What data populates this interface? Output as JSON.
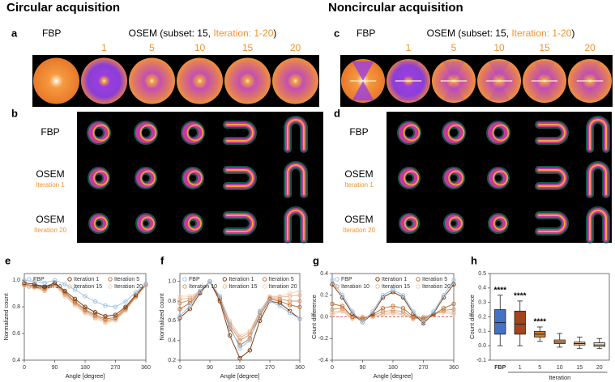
{
  "header": {
    "left_title": "Circular acquisition",
    "right_title": "Noncircular acquisition"
  },
  "panel_a": {
    "letter": "a",
    "fbp_label": "FBP",
    "osem_label": "OSEM (subset: 15, ",
    "iteration_label": "Iteration: 1-20",
    "close": ")",
    "columns": [
      "1",
      "5",
      "10",
      "15",
      "20"
    ]
  },
  "panel_b": {
    "letter": "b",
    "rows": [
      {
        "label": "FBP"
      },
      {
        "label": "OSEM",
        "sub": "Iteration 1"
      },
      {
        "label": "OSEM",
        "sub": "Iteration 20"
      }
    ]
  },
  "panel_c": {
    "letter": "c",
    "fbp_label": "FBP",
    "osem_label": "OSEM (subset: 15, ",
    "iteration_label": "Iteration: 1-20",
    "close": ")",
    "columns": [
      "1",
      "5",
      "10",
      "15",
      "20"
    ]
  },
  "panel_d": {
    "letter": "d",
    "rows": [
      {
        "label": "FBP"
      },
      {
        "label": "OSEM",
        "sub": "Iteration 1"
      },
      {
        "label": "OSEM",
        "sub": "Iteration 20"
      }
    ]
  },
  "chart_data": [
    {
      "type": "line",
      "panel_label": "e",
      "xlabel": "Angle [degree]",
      "ylabel": "Normalized count",
      "x": [
        0,
        30,
        60,
        90,
        120,
        150,
        180,
        210,
        240,
        270,
        300,
        330,
        360
      ],
      "xlim": [
        0,
        360
      ],
      "xticks": [
        0,
        90,
        180,
        270,
        360
      ],
      "ylim": [
        0.4,
        1.05
      ],
      "yticks": [
        0.4,
        0.6,
        0.8,
        {
          "value": 1,
          "label": "1.0"
        }
      ],
      "series": [
        {
          "name": "FBP",
          "color": "#9dc3e6",
          "values": [
            1.0,
            0.99,
            0.98,
            1.0,
            0.97,
            0.93,
            0.88,
            0.84,
            0.81,
            0.8,
            0.84,
            0.91,
            0.97
          ]
        },
        {
          "name": "Iteration 1",
          "color": "#7f3f16",
          "values": [
            0.98,
            0.97,
            0.95,
            0.98,
            0.92,
            0.86,
            0.8,
            0.76,
            0.73,
            0.74,
            0.8,
            0.89,
            0.97
          ]
        },
        {
          "name": "Iteration 5",
          "color": "#c0723a",
          "values": [
            0.97,
            0.96,
            0.94,
            0.98,
            0.91,
            0.84,
            0.78,
            0.74,
            0.71,
            0.72,
            0.79,
            0.88,
            0.97
          ]
        },
        {
          "name": "Iteration 10",
          "color": "#d99a6c",
          "values": [
            0.97,
            0.95,
            0.93,
            0.97,
            0.9,
            0.83,
            0.77,
            0.73,
            0.7,
            0.71,
            0.78,
            0.88,
            0.97
          ]
        },
        {
          "name": "Iteration 15",
          "color": "#ebbb98",
          "values": [
            0.96,
            0.95,
            0.92,
            0.97,
            0.89,
            0.82,
            0.76,
            0.72,
            0.69,
            0.7,
            0.78,
            0.87,
            0.96
          ]
        },
        {
          "name": "Iteration 20",
          "color": "#f4d3bd",
          "values": [
            0.96,
            0.94,
            0.92,
            0.96,
            0.88,
            0.81,
            0.75,
            0.71,
            0.68,
            0.7,
            0.77,
            0.87,
            0.96
          ]
        }
      ]
    },
    {
      "type": "line",
      "panel_label": "f",
      "xlabel": "Angle [degree]",
      "ylabel": "Normalized count",
      "x": [
        0,
        30,
        60,
        90,
        120,
        150,
        180,
        210,
        240,
        270,
        300,
        330,
        360
      ],
      "xlim": [
        0,
        360
      ],
      "xticks": [
        0,
        90,
        180,
        270,
        360
      ],
      "ylim": [
        0.2,
        1.08
      ],
      "yticks": [
        0.2,
        0.4,
        0.6,
        0.8,
        {
          "value": 1,
          "label": "1.0"
        }
      ],
      "series": [
        {
          "name": "FBP",
          "color": "#9dc3e6",
          "values": [
            0.65,
            0.75,
            0.9,
            1.0,
            0.85,
            0.55,
            0.32,
            0.4,
            0.7,
            0.8,
            0.75,
            0.68,
            0.62
          ]
        },
        {
          "name": "Iteration 1",
          "color": "#7f3f16",
          "values": [
            0.63,
            0.72,
            0.88,
            1.0,
            0.8,
            0.45,
            0.22,
            0.3,
            0.6,
            0.8,
            0.78,
            0.7,
            0.62
          ]
        },
        {
          "name": "Iteration 5",
          "color": "#c0723a",
          "values": [
            0.72,
            0.78,
            0.89,
            1.0,
            0.82,
            0.52,
            0.35,
            0.42,
            0.65,
            0.82,
            0.8,
            0.76,
            0.74
          ]
        },
        {
          "name": "Iteration 10",
          "color": "#d99a6c",
          "values": [
            0.78,
            0.81,
            0.89,
            1.0,
            0.83,
            0.56,
            0.4,
            0.46,
            0.68,
            0.83,
            0.82,
            0.8,
            0.8
          ]
        },
        {
          "name": "Iteration 15",
          "color": "#ebbb98",
          "values": [
            0.82,
            0.83,
            0.9,
            1.0,
            0.84,
            0.58,
            0.43,
            0.48,
            0.69,
            0.84,
            0.84,
            0.85,
            0.86
          ]
        },
        {
          "name": "Iteration 20",
          "color": "#f4d3bd",
          "values": [
            0.85,
            0.85,
            0.9,
            1.0,
            0.85,
            0.6,
            0.45,
            0.5,
            0.7,
            0.85,
            0.85,
            0.88,
            0.9
          ]
        }
      ]
    },
    {
      "type": "line",
      "panel_label": "g",
      "xlabel": "Angle [degree]",
      "ylabel": "Count difference",
      "hline": 0,
      "x": [
        0,
        30,
        60,
        90,
        120,
        150,
        180,
        210,
        240,
        270,
        300,
        330,
        360
      ],
      "xlim": [
        0,
        360
      ],
      "xticks": [
        0,
        90,
        180,
        270,
        360
      ],
      "ylim": [
        -0.4,
        0.4
      ],
      "yticks": [
        -0.4,
        -0.2,
        {
          "value": 0,
          "label": "0.0"
        },
        0.2,
        0.4
      ],
      "series": [
        {
          "name": "FBP",
          "color": "#9dc3e6",
          "values": [
            0.34,
            0.2,
            0.05,
            -0.05,
            0.05,
            0.2,
            0.25,
            0.2,
            0.05,
            -0.05,
            0.05,
            0.2,
            0.34
          ]
        },
        {
          "name": "Iteration 1",
          "color": "#7f3f16",
          "values": [
            0.3,
            0.18,
            0.03,
            -0.05,
            0.03,
            0.18,
            0.23,
            0.18,
            0.03,
            -0.06,
            0.03,
            0.18,
            0.3
          ]
        },
        {
          "name": "Iteration 5",
          "color": "#c0723a",
          "values": [
            0.12,
            0.1,
            0.0,
            -0.02,
            0.02,
            0.08,
            0.1,
            0.08,
            0.0,
            -0.02,
            0.02,
            0.08,
            0.12
          ]
        },
        {
          "name": "Iteration 10",
          "color": "#d99a6c",
          "values": [
            0.07,
            0.08,
            0.0,
            -0.01,
            0.01,
            0.05,
            0.06,
            0.05,
            -0.01,
            -0.01,
            0.02,
            0.06,
            0.07
          ]
        },
        {
          "name": "Iteration 15",
          "color": "#ebbb98",
          "values": [
            0.04,
            0.06,
            -0.01,
            0.0,
            0.0,
            0.03,
            0.04,
            0.03,
            -0.02,
            0.0,
            0.03,
            0.05,
            0.04
          ]
        },
        {
          "name": "Iteration 20",
          "color": "#f4d3bd",
          "values": [
            0.02,
            0.05,
            -0.02,
            0.0,
            0.0,
            0.02,
            0.03,
            0.02,
            -0.02,
            0.0,
            0.03,
            0.04,
            0.02
          ]
        }
      ]
    },
    {
      "type": "box",
      "panel_label": "h",
      "ylabel": "Count difference",
      "xlabel": "Iteration",
      "categories": [
        "FBP",
        "1",
        "5",
        "10",
        "15",
        "20"
      ],
      "colors": [
        "#4472c4",
        "#a0461c",
        "#d07a30",
        "#e8a265",
        "#f2c49c",
        "#f8dcc3"
      ],
      "min": [
        0.0,
        0.0,
        0.03,
        -0.01,
        -0.02,
        -0.02
      ],
      "q1": [
        0.08,
        0.08,
        0.06,
        0.015,
        0.005,
        -0.005
      ],
      "median": [
        0.16,
        0.15,
        0.08,
        0.025,
        0.015,
        0.005
      ],
      "q3": [
        0.25,
        0.24,
        0.1,
        0.04,
        0.025,
        0.02
      ],
      "max": [
        0.35,
        0.31,
        0.13,
        0.085,
        0.06,
        0.05
      ],
      "annotations": [
        "****",
        "****",
        "****",
        null,
        null,
        null
      ],
      "ylim": [
        -0.1,
        0.5
      ],
      "yticks": [
        -0.1,
        {
          "value": 0,
          "label": "0.0"
        },
        0.1,
        0.2,
        0.3,
        0.4,
        0.5
      ]
    }
  ]
}
